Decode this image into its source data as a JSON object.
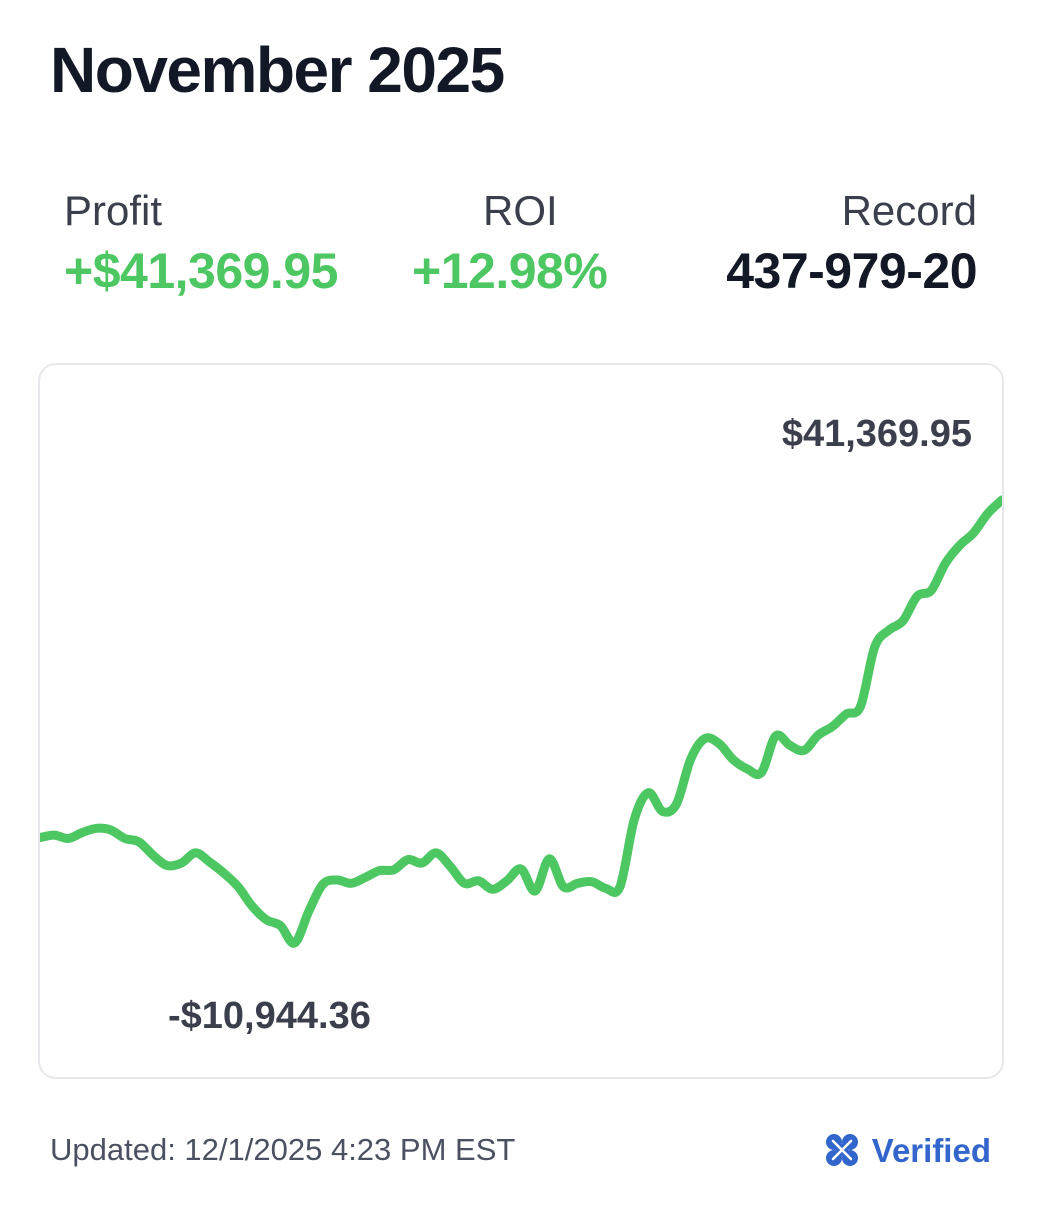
{
  "header": {
    "title": "November 2025"
  },
  "stats": {
    "profit": {
      "label": "Profit",
      "value": "+$41,369.95"
    },
    "roi": {
      "label": "ROI",
      "value": "+12.98%"
    },
    "record": {
      "label": "Record",
      "value": "437-979-20"
    }
  },
  "colors": {
    "accent_green": "#4cc761",
    "verified_blue": "#3366cc",
    "text_dark": "#121826"
  },
  "chart": {
    "max_label": "$41,369.95",
    "min_label": "-$10,944.36"
  },
  "chart_data": {
    "type": "line",
    "title": "",
    "xlabel": "",
    "ylabel": "",
    "grid": false,
    "annotations": [
      "$41,369.95",
      "-$10,944.36"
    ],
    "ylim": [
      -10944.36,
      41369.95
    ],
    "series": [
      {
        "values": [
          1500,
          1800,
          1400,
          2100,
          2600,
          2400,
          1400,
          1000,
          -600,
          -1800,
          -1500,
          -300,
          -1400,
          -2700,
          -4300,
          -6600,
          -8200,
          -8900,
          -10944.36,
          -7200,
          -4000,
          -3500,
          -3900,
          -3200,
          -2400,
          -2300,
          -1100,
          -1500,
          -300,
          -1900,
          -3900,
          -3600,
          -4600,
          -3600,
          -2200,
          -4800,
          -1000,
          -4300,
          -3900,
          -3700,
          -4500,
          -4300,
          3600,
          6800,
          4600,
          5500,
          10800,
          13200,
          12600,
          10700,
          9600,
          9200,
          13500,
          12400,
          11800,
          13600,
          14600,
          16100,
          17000,
          24000,
          26000,
          27100,
          30000,
          30700,
          33900,
          36000,
          37500,
          39800,
          41369.95
        ]
      }
    ]
  },
  "footer": {
    "updated": "Updated: 12/1/2025 4:23 PM EST",
    "verified_label": "Verified",
    "verified_icon": "clover-icon"
  }
}
